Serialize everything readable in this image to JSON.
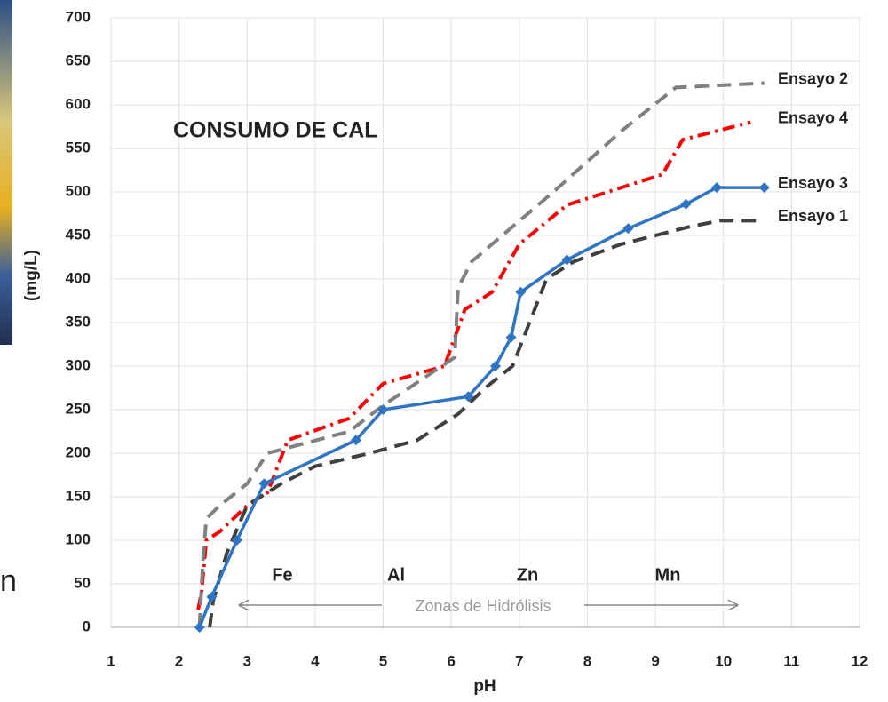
{
  "chart_data": {
    "type": "line",
    "title": "CONSUMO DE CAL",
    "x_label": "pH",
    "y_label": "(mg/L)",
    "xlim": [
      1,
      12
    ],
    "xticks": [
      1,
      2,
      3,
      4,
      5,
      6,
      7,
      8,
      9,
      10,
      11,
      12
    ],
    "ylim": [
      0,
      700
    ],
    "yticks": [
      0,
      50,
      100,
      150,
      200,
      250,
      300,
      350,
      400,
      450,
      500,
      550,
      600,
      650,
      700
    ],
    "grid": true,
    "annotations": [
      "Fe",
      "Al",
      "Zn",
      "Mn",
      "Zonas de Hidrólisis"
    ],
    "side_text": "n",
    "series": [
      {
        "name": "Ensayo 3",
        "color": "#2e75c6",
        "dash": "solid",
        "markers": true,
        "x": [
          2.3,
          2.48,
          2.85,
          3.25,
          4.6,
          5.0,
          6.25,
          6.65,
          6.88,
          7.02,
          7.7,
          8.6,
          9.45,
          9.9,
          10.6
        ],
        "values": [
          0,
          35,
          100,
          165,
          215,
          250,
          265,
          300,
          333,
          385,
          422,
          458,
          486,
          505,
          505
        ]
      },
      {
        "name": "Ensayo 1",
        "color": "#404040",
        "dash": "dashed",
        "markers": false,
        "x": [
          2.45,
          2.5,
          2.7,
          3.0,
          3.5,
          4.0,
          4.8,
          5.5,
          6.1,
          6.5,
          6.9,
          7.4,
          7.8,
          8.5,
          9.5,
          9.95,
          10.5
        ],
        "values": [
          0,
          30,
          85,
          140,
          165,
          185,
          200,
          215,
          245,
          275,
          300,
          400,
          420,
          440,
          460,
          467,
          467
        ]
      },
      {
        "name": "Ensayo 2",
        "color": "#808080",
        "dash": "dashed",
        "markers": false,
        "x": [
          2.3,
          2.35,
          2.4,
          2.6,
          3.0,
          3.3,
          4.5,
          5.0,
          6.05,
          6.1,
          6.3,
          7.5,
          8.5,
          9.3,
          10.6
        ],
        "values": [
          0,
          75,
          125,
          140,
          165,
          200,
          225,
          255,
          310,
          390,
          420,
          500,
          570,
          620,
          625
        ]
      },
      {
        "name": "Ensayo 4",
        "color": "#ff0000",
        "dash": "dashdot",
        "markers": false,
        "x": [
          2.28,
          2.33,
          2.4,
          2.6,
          3.0,
          3.3,
          3.6,
          4.5,
          5.0,
          5.9,
          6.2,
          6.6,
          7.0,
          7.7,
          8.5,
          9.1,
          9.4,
          10.4
        ],
        "values": [
          20,
          40,
          100,
          110,
          140,
          155,
          215,
          240,
          280,
          300,
          365,
          385,
          440,
          485,
          505,
          520,
          560,
          580
        ]
      }
    ]
  }
}
